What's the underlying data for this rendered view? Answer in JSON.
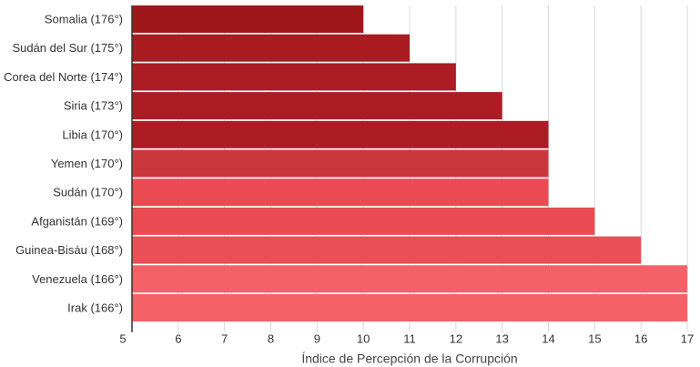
{
  "chart_data": {
    "type": "bar",
    "orientation": "horizontal",
    "categories": [
      "Somalia (176°)",
      "Sudán del Sur (175°)",
      "Corea del Norte (174°)",
      "Siria (173°)",
      "Libia (170°)",
      "Yemen (170°)",
      "Sudán (170°)",
      "Afganistán (169°)",
      "Guinea-Bisáu (168°)",
      "Venezuela (166°)",
      "Irak (166°)"
    ],
    "values": [
      10,
      11,
      12,
      13,
      14,
      14,
      14,
      15,
      16,
      17,
      17
    ],
    "bar_colors": [
      "#a0171b",
      "#aa1b22",
      "#ad1c24",
      "#ad1c24",
      "#ad1c24",
      "#cc363d",
      "#ea4b52",
      "#ea4b52",
      "#ea4f55",
      "#f46167",
      "#f46167"
    ],
    "xlabel": "Índice de Percepción de la Corrupción",
    "xlim": [
      5,
      17
    ],
    "xticks": [
      5,
      6,
      7,
      8,
      9,
      10,
      11,
      12,
      13,
      14,
      15,
      16,
      17
    ],
    "grid": true
  }
}
